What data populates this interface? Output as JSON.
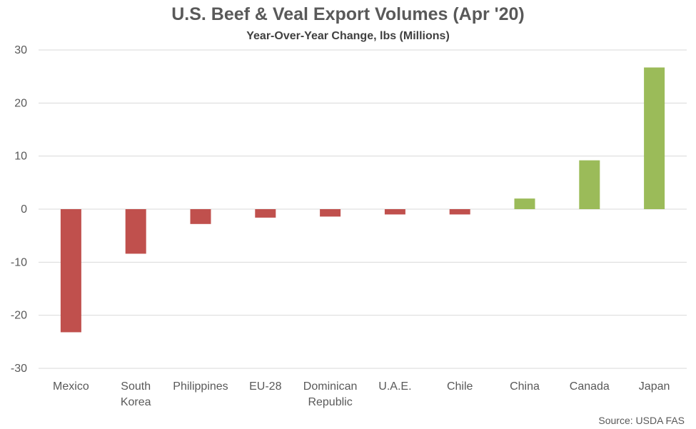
{
  "chart_data": {
    "type": "bar",
    "title": "U.S. Beef & Veal Export Volumes (Apr '20)",
    "subtitle": "Year-Over-Year Change, lbs (Millions)",
    "xlabel": "",
    "ylabel": "",
    "ylim": [
      -30,
      30
    ],
    "yticks": [
      30,
      20,
      10,
      0,
      -10,
      -20,
      -30
    ],
    "grid": true,
    "legend": "none",
    "categories": [
      "Mexico",
      "South Korea",
      "Philippines",
      "EU-28",
      "Dominican Republic",
      "U.A.E.",
      "Chile",
      "China",
      "Canada",
      "Japan"
    ],
    "category_label_lines": [
      [
        "Mexico"
      ],
      [
        "South",
        "Korea"
      ],
      [
        "Philippines"
      ],
      [
        "EU-28"
      ],
      [
        "Dominican",
        "Republic"
      ],
      [
        "U.A.E."
      ],
      [
        "Chile"
      ],
      [
        "China"
      ],
      [
        "Canada"
      ],
      [
        "Japan"
      ]
    ],
    "values": [
      -23.2,
      -8.4,
      -2.8,
      -1.6,
      -1.4,
      -1.0,
      -1.0,
      2.0,
      9.2,
      26.7
    ],
    "colors": {
      "negative": "#C0504D",
      "positive": "#9BBB59",
      "grid": "#D9D9D9"
    }
  },
  "source": "Source: USDA FAS"
}
